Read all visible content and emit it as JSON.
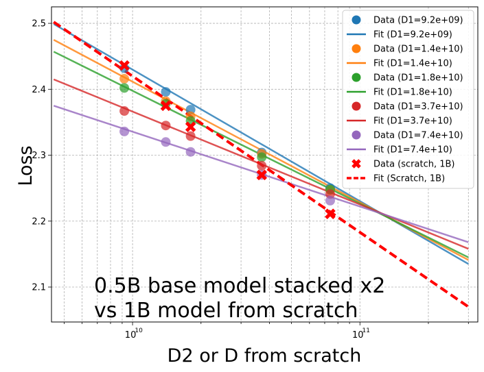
{
  "chart_data": {
    "type": "line",
    "title": "",
    "xlabel": "D2 or D from scratch",
    "ylabel": "Loss",
    "xscale": "log",
    "xlim": [
      4400000000.0,
      330000000000.0
    ],
    "ylim": [
      2.047,
      2.525
    ],
    "grid": true,
    "legend_position": "top-right",
    "x_ticks": [
      {
        "value": 10000000000.0,
        "base": "10",
        "exp": "10"
      },
      {
        "value": 100000000000.0,
        "base": "10",
        "exp": "11"
      }
    ],
    "y_ticks": [
      {
        "value": 2.1,
        "label": "2.1"
      },
      {
        "value": 2.2,
        "label": "2.2"
      },
      {
        "value": 2.3,
        "label": "2.3"
      },
      {
        "value": 2.4,
        "label": "2.4"
      },
      {
        "value": 2.5,
        "label": "2.5"
      }
    ],
    "annotation": [
      "0.5B base model stacked x2",
      "vs 1B model from scratch"
    ],
    "fit_x_range": [
      4500000000.0,
      300000000000.0
    ],
    "series": [
      {
        "data_label": "Data (D1=9.2e+09)",
        "fit_label": "Fit (D1=9.2e+09)",
        "color": "#1f77b4",
        "marker": "circle",
        "points": [
          [
            9200000000.0,
            2.432
          ],
          [
            14000000000.0,
            2.396
          ],
          [
            18000000000.0,
            2.369
          ],
          [
            37000000000.0,
            2.304
          ],
          [
            74000000000.0,
            2.25
          ]
        ],
        "fit": {
          "y_start": 2.499,
          "y_end": 2.135
        }
      },
      {
        "data_label": "Data (D1=1.4e+10)",
        "fit_label": "Fit (D1=1.4e+10)",
        "color": "#ff7f0e",
        "marker": "circle",
        "points": [
          [
            9200000000.0,
            2.416
          ],
          [
            14000000000.0,
            2.382
          ],
          [
            18000000000.0,
            2.359
          ],
          [
            37000000000.0,
            2.302
          ],
          [
            74000000000.0,
            2.247
          ]
        ],
        "fit": {
          "y_start": 2.475,
          "y_end": 2.141
        }
      },
      {
        "data_label": "Data (D1=1.8e+10)",
        "fit_label": "Fit (D1=1.8e+10)",
        "color": "#2ca02c",
        "marker": "circle",
        "points": [
          [
            9200000000.0,
            2.402
          ],
          [
            14000000000.0,
            2.378
          ],
          [
            18000000000.0,
            2.352
          ],
          [
            37000000000.0,
            2.297
          ],
          [
            74000000000.0,
            2.248
          ]
        ],
        "fit": {
          "y_start": 2.457,
          "y_end": 2.145
        }
      },
      {
        "data_label": "Data (D1=3.7e+10)",
        "fit_label": "Fit (D1=3.7e+10)",
        "color": "#d62728",
        "marker": "circle",
        "points": [
          [
            9200000000.0,
            2.367
          ],
          [
            14000000000.0,
            2.345
          ],
          [
            18000000000.0,
            2.329
          ],
          [
            37000000000.0,
            2.284
          ],
          [
            74000000000.0,
            2.241
          ]
        ],
        "fit": {
          "y_start": 2.415,
          "y_end": 2.158
        }
      },
      {
        "data_label": "Data (D1=7.4e+10)",
        "fit_label": "Fit (D1=7.4e+10)",
        "color": "#9467bd",
        "marker": "circle",
        "points": [
          [
            9200000000.0,
            2.336
          ],
          [
            14000000000.0,
            2.32
          ],
          [
            18000000000.0,
            2.305
          ],
          [
            37000000000.0,
            2.27
          ],
          [
            74000000000.0,
            2.231
          ]
        ],
        "fit": {
          "y_start": 2.375,
          "y_end": 2.168
        }
      },
      {
        "data_label": "Data (scratch, 1B)",
        "fit_label": "Fit (Scratch, 1B)",
        "color": "#ff0000",
        "marker": "x",
        "dashed": true,
        "points": [
          [
            9200000000.0,
            2.436
          ],
          [
            14000000000.0,
            2.375
          ],
          [
            18000000000.0,
            2.343
          ],
          [
            37000000000.0,
            2.27
          ],
          [
            74000000000.0,
            2.211
          ]
        ],
        "fit": {
          "y_start": 2.502,
          "y_end": 2.07
        }
      }
    ]
  }
}
